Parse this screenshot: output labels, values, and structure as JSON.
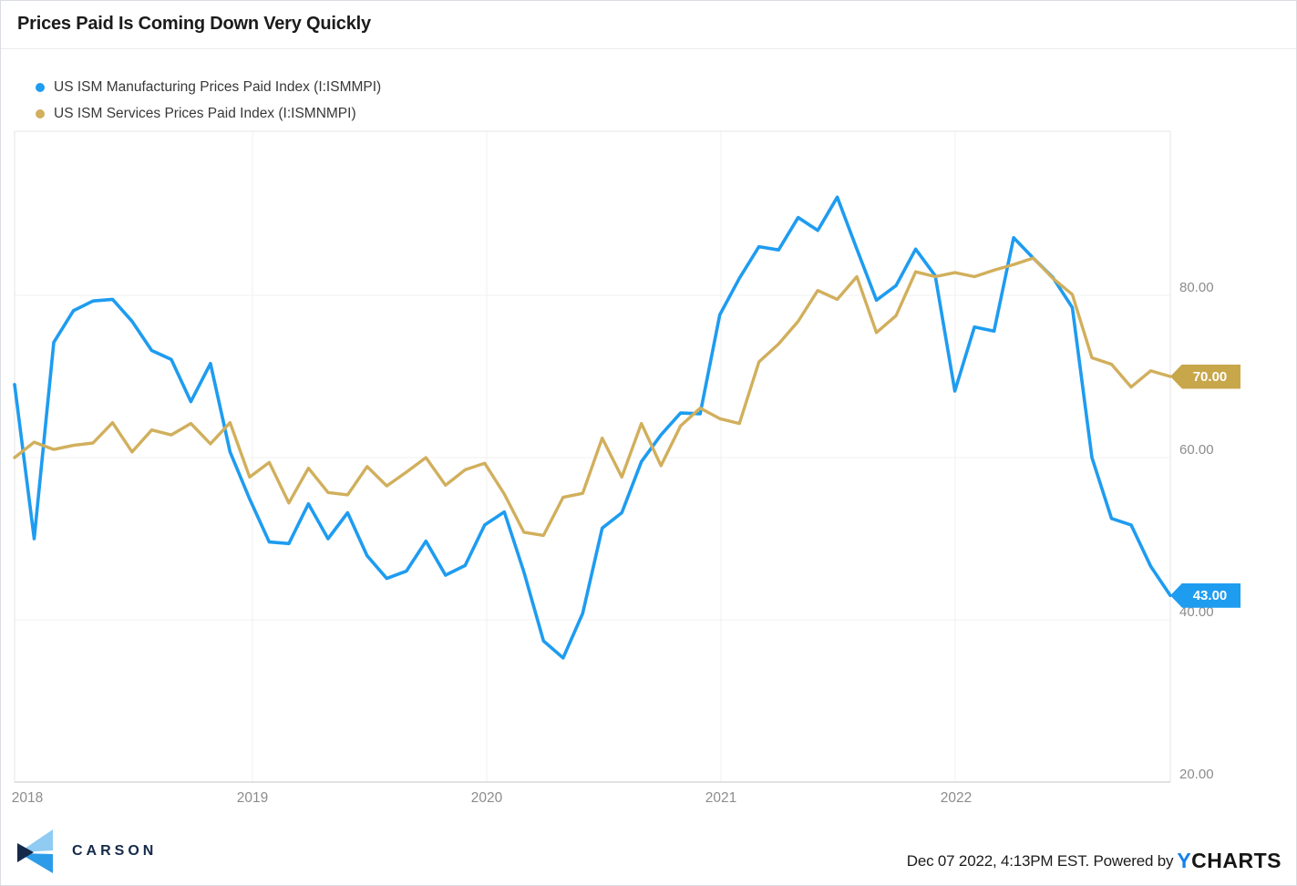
{
  "page": {
    "title": "Prices Paid Is Coming Down Very Quickly"
  },
  "legend": [
    {
      "label": "US ISM Manufacturing Prices Paid Index (I:ISMMPI)",
      "color": "#1e9cf0"
    },
    {
      "label": "US ISM Services Prices Paid Index (I:ISMNMPI)",
      "color": "#d1af5c"
    }
  ],
  "chart_data": {
    "type": "line",
    "title": "Prices Paid Is Coming Down Very Quickly",
    "xlabel": "",
    "ylabel": "",
    "frequency": "monthly",
    "months": [
      "2017-12",
      "2018-01",
      "2018-02",
      "2018-03",
      "2018-04",
      "2018-05",
      "2018-06",
      "2018-07",
      "2018-08",
      "2018-09",
      "2018-10",
      "2018-11",
      "2018-12",
      "2019-01",
      "2019-02",
      "2019-03",
      "2019-04",
      "2019-05",
      "2019-06",
      "2019-07",
      "2019-08",
      "2019-09",
      "2019-10",
      "2019-11",
      "2019-12",
      "2020-01",
      "2020-02",
      "2020-03",
      "2020-04",
      "2020-05",
      "2020-06",
      "2020-07",
      "2020-08",
      "2020-09",
      "2020-10",
      "2020-11",
      "2020-12",
      "2021-01",
      "2021-02",
      "2021-03",
      "2021-04",
      "2021-05",
      "2021-06",
      "2021-07",
      "2021-08",
      "2021-09",
      "2021-10",
      "2021-11",
      "2021-12",
      "2022-01",
      "2022-02",
      "2022-03",
      "2022-04",
      "2022-05",
      "2022-06",
      "2022-07",
      "2022-08",
      "2022-09",
      "2022-10",
      "2022-11"
    ],
    "series": [
      {
        "name": "US ISM Manufacturing Prices Paid Index (I:ISMMPI)",
        "color": "#1e9cf0",
        "end_label": "43.00",
        "end_value": 43.0,
        "values": [
          69.0,
          50.0,
          74.2,
          78.1,
          79.3,
          79.5,
          76.8,
          73.2,
          72.1,
          66.9,
          71.6,
          60.7,
          54.9,
          49.6,
          49.4,
          54.3,
          50.0,
          53.2,
          47.9,
          45.1,
          46.0,
          49.7,
          45.5,
          46.7,
          51.7,
          53.3,
          45.9,
          37.4,
          35.3,
          40.8,
          51.3,
          53.2,
          59.5,
          62.8,
          65.5,
          65.4,
          77.6,
          82.1,
          86.0,
          85.6,
          89.6,
          88.0,
          92.1,
          85.7,
          79.4,
          81.2,
          85.7,
          82.4,
          68.2,
          76.1,
          75.6,
          87.1,
          84.6,
          82.2,
          78.5,
          60.0,
          52.5,
          51.7,
          46.6,
          43.0
        ]
      },
      {
        "name": "US ISM Services Prices Paid Index (I:ISMNMPI)",
        "color": "#d1af5c",
        "end_label": "70.00",
        "end_value": 70.0,
        "values": [
          60.0,
          61.9,
          61.0,
          61.5,
          61.8,
          64.3,
          60.7,
          63.4,
          62.8,
          64.2,
          61.7,
          64.3,
          57.6,
          59.4,
          54.4,
          58.7,
          55.7,
          55.4,
          58.9,
          56.5,
          58.2,
          60.0,
          56.6,
          58.5,
          59.3,
          55.5,
          50.8,
          50.4,
          55.1,
          55.6,
          62.4,
          57.6,
          64.2,
          59.0,
          63.9,
          66.1,
          64.8,
          64.2,
          71.8,
          74.0,
          76.8,
          80.6,
          79.5,
          82.3,
          75.4,
          77.5,
          82.9,
          82.3,
          82.8,
          82.3,
          83.1,
          83.8,
          84.6,
          82.1,
          80.1,
          72.3,
          71.5,
          68.7,
          70.7,
          70.0
        ]
      }
    ],
    "x_ticks": [
      {
        "label": "2018"
      },
      {
        "label": "2019"
      },
      {
        "label": "2020"
      },
      {
        "label": "2021"
      },
      {
        "label": "2022"
      }
    ],
    "y_ticks": [
      {
        "label": "80.00",
        "value": 80
      },
      {
        "label": "60.00",
        "value": 60
      },
      {
        "label": "40.00",
        "value": 40
      },
      {
        "label": "20.00",
        "value": 20
      }
    ],
    "ylim": [
      20,
      100.3
    ],
    "grid": true,
    "legend_position": "top-left"
  },
  "badges": {
    "services": {
      "text": "70.00",
      "bg": "#c8a64a"
    },
    "manufacturing": {
      "text": "43.00",
      "bg": "#1e9cf0"
    }
  },
  "colors": {
    "gridline": "#f1f1f1",
    "plot_border": "#e4e4e4",
    "plot_bottom_border": "#d8d8d8",
    "axis_text": "#8c8c8c"
  },
  "footer": {
    "carson_label": "CARSON",
    "timestamp": "Dec 07 2022, 4:13PM EST. Powered by",
    "ycharts_y": "Y",
    "ycharts_rest": "CHARTS"
  }
}
